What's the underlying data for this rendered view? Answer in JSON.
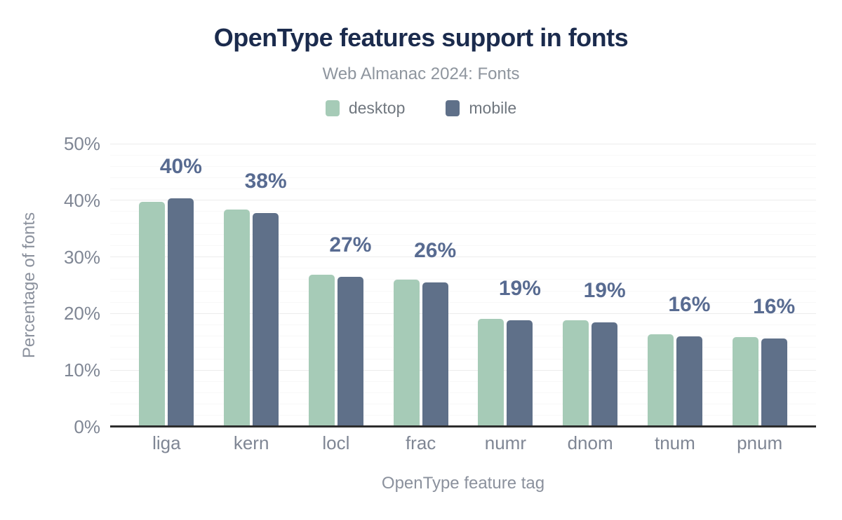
{
  "chart_data": {
    "type": "bar",
    "title": "OpenType features support in fonts",
    "subtitle": "Web Almanac 2024: Fonts",
    "xlabel": "OpenType feature tag",
    "ylabel": "Percentage of fonts",
    "categories": [
      "liga",
      "kern",
      "locl",
      "frac",
      "numr",
      "dnom",
      "tnum",
      "pnum"
    ],
    "series": [
      {
        "name": "desktop",
        "color": "#a6cbb7",
        "values": [
          39.7,
          38.4,
          26.8,
          26.0,
          19.0,
          18.8,
          16.3,
          15.9
        ]
      },
      {
        "name": "mobile",
        "color": "#5f7089",
        "values": [
          40.3,
          37.7,
          26.5,
          25.5,
          18.8,
          18.5,
          16.0,
          15.6
        ],
        "labels": [
          "40%",
          "38%",
          "27%",
          "26%",
          "19%",
          "19%",
          "16%",
          "16%"
        ]
      }
    ],
    "ylim": [
      0,
      50
    ],
    "yticks": [
      "0%",
      "10%",
      "20%",
      "30%",
      "40%",
      "50%"
    ],
    "grid": "horizontal, major every 10% with faint minor lines every 2%",
    "legend_position": "top",
    "colors": {
      "title": "#1b2b4d",
      "subtitle": "#8e959e",
      "value_label": "#586b91",
      "tick_label": "#7f8694",
      "axis_title": "#8b919d",
      "axis_line": "#2d2d2d",
      "background": "#ffffff"
    }
  }
}
